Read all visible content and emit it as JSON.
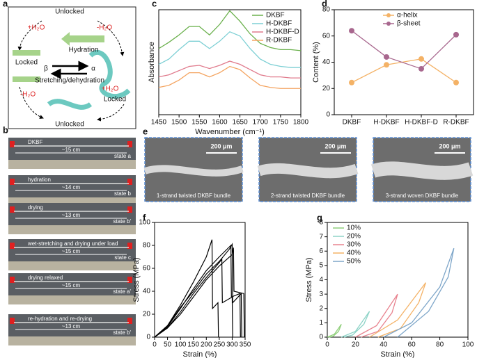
{
  "panel_labels": [
    "a",
    "b",
    "c",
    "d",
    "e",
    "f",
    "g"
  ],
  "schematic": {
    "top": "Unlocked",
    "hydration": "Hydration",
    "plus_left": "+H₂O",
    "minus_right": "-H₂O",
    "locked_left": "Locked",
    "beta": "β",
    "alpha": "α",
    "stretching": "Stretching/dehydration",
    "locked_right": "Locked",
    "minus_left": "-H₂O",
    "plus_right": "+H₂O",
    "bottom": "Unlocked"
  },
  "photos": [
    {
      "label": "DKBF",
      "length": "~15 cm",
      "state": "state a"
    },
    {
      "label": "hydration",
      "length": "~14 cm",
      "state": "state b"
    },
    {
      "label": "drying",
      "length": "~13 cm",
      "state": "state b'"
    },
    {
      "label": "wet-stretching and drying under load",
      "length": "~15 cm",
      "state": "state c"
    },
    {
      "label": "drying relaxed",
      "length": "~15 cm",
      "state": "state a'"
    },
    {
      "label": "re-hydration and re-drying",
      "length": "~13 cm",
      "state": "state b'"
    }
  ],
  "micrographs": [
    {
      "scale": "200 μm",
      "caption": "1-strand twisted DKBF bundle"
    },
    {
      "scale": "200 μm",
      "caption": "2-strand twisted DKBF bundle"
    },
    {
      "scale": "200 μm",
      "caption": "3-strand woven DKBF bundle"
    }
  ],
  "chart_data": [
    {
      "type": "line",
      "xlabel": "Wavenumber (cm⁻¹)",
      "ylabel": "Absorbance",
      "x": [
        1450,
        1475,
        1500,
        1525,
        1550,
        1575,
        1600,
        1625,
        1650,
        1675,
        1700,
        1725,
        1750,
        1775,
        1800
      ],
      "xlim": [
        1450,
        1800
      ],
      "xticks": [
        1450,
        1500,
        1550,
        1600,
        1650,
        1700,
        1750,
        1800
      ],
      "ylim": [
        0,
        10
      ],
      "legend": "upper right",
      "series": [
        {
          "name": "DKBF",
          "color": "#6ab04c",
          "values": [
            6.3,
            6.9,
            7.6,
            8.4,
            8.4,
            7.6,
            8.6,
            9.9,
            8.9,
            7.7,
            6.8,
            6.4,
            6.2,
            6.2,
            6.1
          ]
        },
        {
          "name": "H-DKBF",
          "color": "#7ccfd4",
          "values": [
            4.8,
            5.3,
            6.2,
            7.0,
            7.0,
            6.3,
            7.0,
            7.9,
            7.5,
            6.3,
            5.3,
            4.8,
            4.6,
            4.5,
            4.5
          ]
        },
        {
          "name": "H-DKBF-D",
          "color": "#e07a8c",
          "values": [
            3.6,
            3.8,
            4.2,
            4.6,
            4.7,
            4.4,
            4.7,
            5.1,
            4.8,
            4.3,
            3.8,
            3.6,
            3.6,
            3.5,
            3.5
          ]
        },
        {
          "name": "R-DKBF",
          "color": "#f4a460",
          "values": [
            2.6,
            2.8,
            3.3,
            4.0,
            4.0,
            3.6,
            4.0,
            4.6,
            4.3,
            3.5,
            2.8,
            2.6,
            2.5,
            2.5,
            2.5
          ]
        }
      ]
    },
    {
      "type": "line",
      "ylabel": "Content (%)",
      "markers": true,
      "categories": [
        "DKBF",
        "H-DKBF",
        "H-DKBF-D",
        "R-DKBF"
      ],
      "ylim": [
        0,
        80
      ],
      "yticks": [
        0,
        20,
        40,
        60,
        80
      ],
      "legend": "upper center",
      "series": [
        {
          "name": "α-helix",
          "color": "#f4b266",
          "values": [
            24.5,
            38,
            42.5,
            24.5
          ]
        },
        {
          "name": "β-sheet",
          "color": "#a8678e",
          "values": [
            64,
            44,
            35,
            61
          ]
        }
      ]
    },
    {
      "type": "line",
      "xlabel": "Strain (%)",
      "ylabel": "Stress (MPa)",
      "xlim": [
        0,
        350
      ],
      "xticks": [
        0,
        50,
        100,
        150,
        200,
        250,
        300,
        350
      ],
      "ylim": [
        0,
        100
      ],
      "yticks": [
        0,
        20,
        40,
        60,
        80,
        100
      ],
      "series": [
        {
          "color": "#000000",
          "x": [
            0,
            50,
            100,
            150,
            200,
            222,
            224,
            245,
            247
          ],
          "values": [
            0,
            10,
            28,
            48,
            70,
            85,
            25,
            30,
            0
          ]
        },
        {
          "color": "#000000",
          "x": [
            0,
            50,
            100,
            150,
            200,
            250,
            260,
            262,
            300,
            302
          ],
          "values": [
            0,
            8,
            22,
            38,
            52,
            65,
            68,
            30,
            35,
            0
          ]
        },
        {
          "color": "#000000",
          "x": [
            0,
            50,
            100,
            150,
            200,
            250,
            295,
            297,
            330,
            332
          ],
          "values": [
            0,
            9,
            25,
            42,
            58,
            70,
            80,
            35,
            38,
            0
          ]
        },
        {
          "color": "#000000",
          "x": [
            0,
            50,
            100,
            150,
            200,
            250,
            290,
            300,
            302,
            335,
            337
          ],
          "values": [
            0,
            10,
            26,
            40,
            55,
            66,
            77,
            81,
            30,
            38,
            0
          ]
        },
        {
          "color": "#000000",
          "x": [
            0,
            50,
            100,
            150,
            200,
            250,
            300,
            305,
            307,
            345,
            347
          ],
          "values": [
            0,
            8,
            20,
            35,
            50,
            62,
            72,
            78,
            40,
            38,
            0
          ]
        }
      ]
    },
    {
      "type": "line",
      "xlabel": "Strain (%)",
      "ylabel": "Stress (MPa)",
      "xlim": [
        0,
        100
      ],
      "xticks": [
        0,
        20,
        40,
        60,
        80,
        100
      ],
      "ylim": [
        0,
        8
      ],
      "yticks": [
        0,
        1,
        2,
        3,
        4,
        5,
        6,
        7,
        8
      ],
      "legend": "upper left",
      "series": [
        {
          "name": "10%",
          "color": "#8fcf7a",
          "x": [
            0,
            5,
            10,
            8,
            4,
            1
          ],
          "values": [
            0,
            0.2,
            0.9,
            0.4,
            0.05,
            0
          ]
        },
        {
          "name": "20%",
          "color": "#8dd3c7",
          "x": [
            10,
            20,
            30,
            26,
            18,
            12
          ],
          "values": [
            0,
            0.4,
            1.8,
            0.9,
            0.15,
            0
          ]
        },
        {
          "name": "30%",
          "color": "#e8838f",
          "x": [
            20,
            35,
            50,
            46,
            36,
            24
          ],
          "values": [
            0,
            0.8,
            3.0,
            1.7,
            0.4,
            0
          ]
        },
        {
          "name": "40%",
          "color": "#f4b266",
          "x": [
            30,
            50,
            70,
            65,
            52,
            36
          ],
          "values": [
            0,
            1.2,
            3.8,
            2.4,
            0.6,
            0
          ]
        },
        {
          "name": "50%",
          "color": "#7ea6c9",
          "x": [
            40,
            60,
            80,
            90,
            86,
            72,
            50
          ],
          "values": [
            0,
            1.0,
            3.5,
            6.2,
            4.2,
            1.8,
            0
          ]
        }
      ]
    }
  ]
}
